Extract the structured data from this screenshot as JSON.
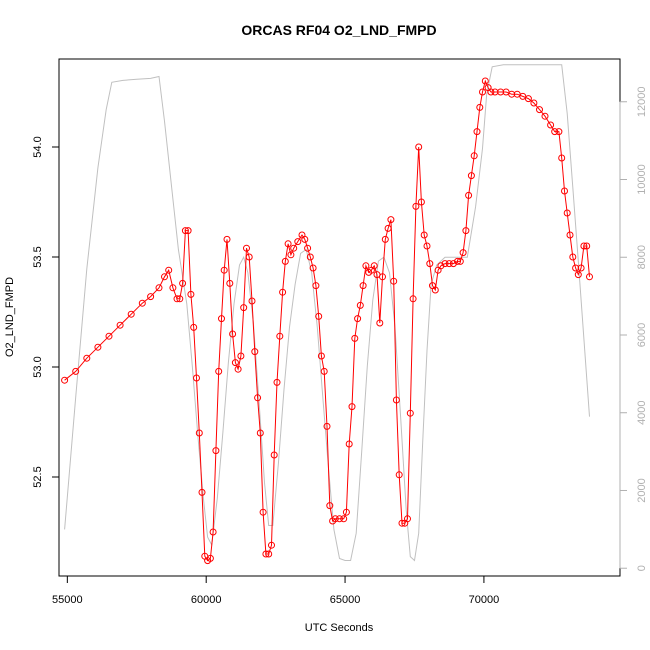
{
  "chart_data": {
    "type": "line",
    "title": "ORCAS RF04 O2_LND_FMPD",
    "xlabel": "UTC Seconds",
    "ylabel": "O2_LND_FMPD",
    "xlim": [
      54700,
      74900
    ],
    "ylim": [
      52.05,
      54.4
    ],
    "y2lim": [
      -200,
      13100
    ],
    "x_ticks": [
      55000,
      60000,
      65000,
      70000
    ],
    "x_tick_labels": [
      "55000",
      "60000",
      "65000",
      "70000"
    ],
    "y_ticks": [
      52.5,
      53.0,
      53.5,
      54.0
    ],
    "y_tick_labels": [
      "52.5",
      "53.0",
      "53.5",
      "54.0"
    ],
    "y2_ticks": [
      0,
      2000,
      4000,
      6000,
      8000,
      10000,
      12000
    ],
    "y2_tick_labels": [
      "0",
      "2000",
      "4000",
      "6000",
      "8000",
      "10000",
      "12000"
    ],
    "grid": false,
    "series": [
      {
        "color": "#ff0000",
        "marker": "open-circle",
        "axis": "left",
        "points": [
          [
            54900,
            52.94
          ],
          [
            55300,
            52.98
          ],
          [
            55700,
            53.04
          ],
          [
            56100,
            53.09
          ],
          [
            56500,
            53.14
          ],
          [
            56900,
            53.19
          ],
          [
            57300,
            53.24
          ],
          [
            57700,
            53.29
          ],
          [
            58000,
            53.32
          ],
          [
            58300,
            53.36
          ],
          [
            58500,
            53.41
          ],
          [
            58650,
            53.44
          ],
          [
            58800,
            53.36
          ],
          [
            58950,
            53.31
          ],
          [
            59050,
            53.31
          ],
          [
            59150,
            53.38
          ],
          [
            59250,
            53.62
          ],
          [
            59350,
            53.62
          ],
          [
            59450,
            53.33
          ],
          [
            59550,
            53.18
          ],
          [
            59650,
            52.95
          ],
          [
            59750,
            52.7
          ],
          [
            59850,
            52.43
          ],
          [
            59950,
            52.14
          ],
          [
            60050,
            52.12
          ],
          [
            60150,
            52.13
          ],
          [
            60250,
            52.25
          ],
          [
            60350,
            52.62
          ],
          [
            60450,
            52.98
          ],
          [
            60550,
            53.22
          ],
          [
            60650,
            53.44
          ],
          [
            60750,
            53.58
          ],
          [
            60850,
            53.38
          ],
          [
            60950,
            53.15
          ],
          [
            61050,
            53.02
          ],
          [
            61150,
            52.99
          ],
          [
            61250,
            53.05
          ],
          [
            61350,
            53.27
          ],
          [
            61450,
            53.54
          ],
          [
            61550,
            53.5
          ],
          [
            61650,
            53.3
          ],
          [
            61750,
            53.07
          ],
          [
            61850,
            52.86
          ],
          [
            61950,
            52.7
          ],
          [
            62050,
            52.34
          ],
          [
            62150,
            52.15
          ],
          [
            62250,
            52.15
          ],
          [
            62350,
            52.19
          ],
          [
            62450,
            52.6
          ],
          [
            62550,
            52.93
          ],
          [
            62650,
            53.14
          ],
          [
            62750,
            53.34
          ],
          [
            62850,
            53.48
          ],
          [
            62950,
            53.56
          ],
          [
            63050,
            53.51
          ],
          [
            63150,
            53.54
          ],
          [
            63300,
            53.57
          ],
          [
            63450,
            53.6
          ],
          [
            63550,
            53.58
          ],
          [
            63650,
            53.54
          ],
          [
            63750,
            53.5
          ],
          [
            63850,
            53.45
          ],
          [
            63950,
            53.37
          ],
          [
            64050,
            53.23
          ],
          [
            64150,
            53.05
          ],
          [
            64250,
            52.98
          ],
          [
            64350,
            52.73
          ],
          [
            64450,
            52.37
          ],
          [
            64550,
            52.3
          ],
          [
            64650,
            52.31
          ],
          [
            64800,
            52.31
          ],
          [
            64950,
            52.31
          ],
          [
            65050,
            52.34
          ],
          [
            65150,
            52.65
          ],
          [
            65250,
            52.82
          ],
          [
            65350,
            53.13
          ],
          [
            65450,
            53.22
          ],
          [
            65550,
            53.28
          ],
          [
            65650,
            53.37
          ],
          [
            65750,
            53.46
          ],
          [
            65850,
            53.43
          ],
          [
            65950,
            53.44
          ],
          [
            66050,
            53.46
          ],
          [
            66150,
            53.42
          ],
          [
            66250,
            53.2
          ],
          [
            66350,
            53.41
          ],
          [
            66450,
            53.58
          ],
          [
            66550,
            53.63
          ],
          [
            66650,
            53.67
          ],
          [
            66750,
            53.39
          ],
          [
            66850,
            52.85
          ],
          [
            66950,
            52.51
          ],
          [
            67050,
            52.29
          ],
          [
            67150,
            52.29
          ],
          [
            67250,
            52.31
          ],
          [
            67350,
            52.79
          ],
          [
            67450,
            53.31
          ],
          [
            67550,
            53.73
          ],
          [
            67650,
            54.0
          ],
          [
            67750,
            53.75
          ],
          [
            67850,
            53.6
          ],
          [
            67950,
            53.55
          ],
          [
            68050,
            53.47
          ],
          [
            68150,
            53.37
          ],
          [
            68250,
            53.35
          ],
          [
            68350,
            53.44
          ],
          [
            68450,
            53.46
          ],
          [
            68600,
            53.47
          ],
          [
            68750,
            53.47
          ],
          [
            68900,
            53.47
          ],
          [
            69050,
            53.48
          ],
          [
            69150,
            53.48
          ],
          [
            69250,
            53.52
          ],
          [
            69350,
            53.62
          ],
          [
            69450,
            53.78
          ],
          [
            69550,
            53.87
          ],
          [
            69650,
            53.96
          ],
          [
            69750,
            54.07
          ],
          [
            69850,
            54.18
          ],
          [
            69950,
            54.25
          ],
          [
            70050,
            54.3
          ],
          [
            70150,
            54.27
          ],
          [
            70250,
            54.25
          ],
          [
            70400,
            54.25
          ],
          [
            70600,
            54.25
          ],
          [
            70800,
            54.25
          ],
          [
            71000,
            54.24
          ],
          [
            71200,
            54.24
          ],
          [
            71400,
            54.23
          ],
          [
            71600,
            54.22
          ],
          [
            71800,
            54.2
          ],
          [
            72000,
            54.17
          ],
          [
            72200,
            54.14
          ],
          [
            72400,
            54.1
          ],
          [
            72550,
            54.07
          ],
          [
            72700,
            54.07
          ],
          [
            72800,
            53.95
          ],
          [
            72900,
            53.8
          ],
          [
            73000,
            53.7
          ],
          [
            73100,
            53.6
          ],
          [
            73200,
            53.5
          ],
          [
            73300,
            53.45
          ],
          [
            73400,
            53.42
          ],
          [
            73500,
            53.45
          ],
          [
            73600,
            53.55
          ],
          [
            73700,
            53.55
          ],
          [
            73800,
            53.41
          ]
        ]
      },
      {
        "color": "#c0c0c0",
        "marker": "none",
        "axis": "right",
        "points": [
          [
            54900,
            1000
          ],
          [
            55300,
            4400
          ],
          [
            55700,
            7700
          ],
          [
            56100,
            10300
          ],
          [
            56400,
            11800
          ],
          [
            56600,
            12500
          ],
          [
            57000,
            12550
          ],
          [
            57500,
            12580
          ],
          [
            58000,
            12600
          ],
          [
            58300,
            12650
          ],
          [
            58500,
            11500
          ],
          [
            58800,
            9500
          ],
          [
            59000,
            8200
          ],
          [
            59150,
            7500
          ],
          [
            59300,
            6800
          ],
          [
            59500,
            5200
          ],
          [
            59700,
            3400
          ],
          [
            59900,
            1800
          ],
          [
            60050,
            800
          ],
          [
            60200,
            600
          ],
          [
            60400,
            1800
          ],
          [
            60600,
            3500
          ],
          [
            60800,
            5300
          ],
          [
            61000,
            6800
          ],
          [
            61200,
            7800
          ],
          [
            61350,
            8000
          ],
          [
            61500,
            7600
          ],
          [
            61700,
            6300
          ],
          [
            61900,
            4300
          ],
          [
            62100,
            2200
          ],
          [
            62250,
            1100
          ],
          [
            62400,
            1100
          ],
          [
            62600,
            2700
          ],
          [
            62800,
            4600
          ],
          [
            63000,
            6200
          ],
          [
            63200,
            7300
          ],
          [
            63400,
            8100
          ],
          [
            63600,
            8200
          ],
          [
            63800,
            7600
          ],
          [
            64000,
            6200
          ],
          [
            64200,
            4400
          ],
          [
            64400,
            2600
          ],
          [
            64600,
            1000
          ],
          [
            64800,
            250
          ],
          [
            65000,
            200
          ],
          [
            65200,
            200
          ],
          [
            65400,
            900
          ],
          [
            65600,
            3000
          ],
          [
            65800,
            5200
          ],
          [
            66000,
            6900
          ],
          [
            66200,
            7900
          ],
          [
            66400,
            8000
          ],
          [
            66600,
            7600
          ],
          [
            66800,
            6200
          ],
          [
            67000,
            3900
          ],
          [
            67200,
            1500
          ],
          [
            67350,
            300
          ],
          [
            67500,
            200
          ],
          [
            67650,
            900
          ],
          [
            67800,
            3300
          ],
          [
            67950,
            5600
          ],
          [
            68100,
            7300
          ],
          [
            68300,
            7800
          ],
          [
            68600,
            8000
          ],
          [
            69000,
            8000
          ],
          [
            69400,
            8000
          ],
          [
            69700,
            9300
          ],
          [
            69950,
            10800
          ],
          [
            70100,
            12200
          ],
          [
            70300,
            12900
          ],
          [
            70700,
            12950
          ],
          [
            71200,
            12950
          ],
          [
            71800,
            12950
          ],
          [
            72400,
            12950
          ],
          [
            72800,
            12950
          ],
          [
            73000,
            11700
          ],
          [
            73200,
            9800
          ],
          [
            73400,
            7900
          ],
          [
            73600,
            5900
          ],
          [
            73800,
            3900
          ]
        ]
      }
    ]
  }
}
